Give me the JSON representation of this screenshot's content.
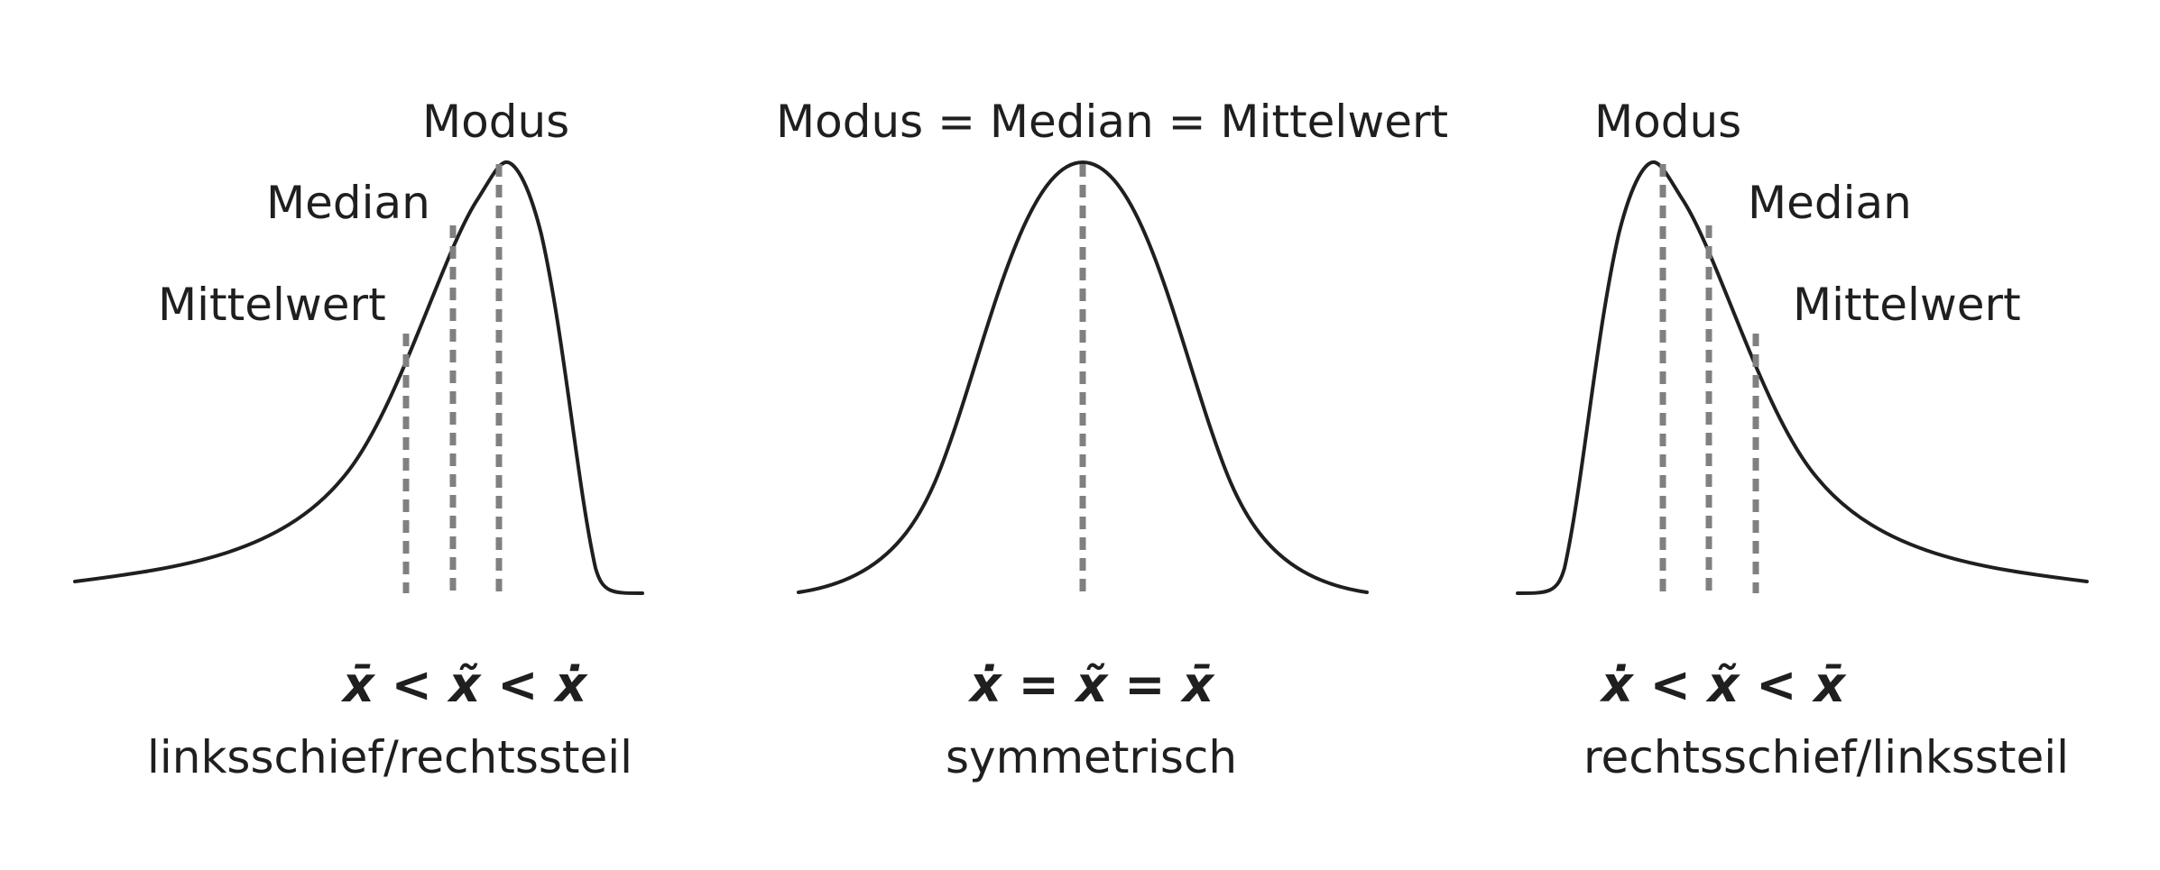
{
  "panels": [
    {
      "labels": {
        "modus": "Modus",
        "median": "Median",
        "mittelwert": "Mittelwert"
      },
      "formula": "x̄ < x̃ < ẋ",
      "caption": "linksschief/rechtssteil"
    },
    {
      "labels": {
        "combined": "Modus = Median = Mittelwert"
      },
      "formula": "ẋ = x̃ = x̄",
      "caption": "symmetrisch"
    },
    {
      "labels": {
        "modus": "Modus",
        "median": "Median",
        "mittelwert": "Mittelwert"
      },
      "formula": "ẋ < x̃ < x̄",
      "caption": "rechtsschief/linkssteil"
    }
  ],
  "colors": {
    "curve": "#1f1f1f",
    "dashed_lines": "#808080",
    "text": "#1f1f1f"
  }
}
